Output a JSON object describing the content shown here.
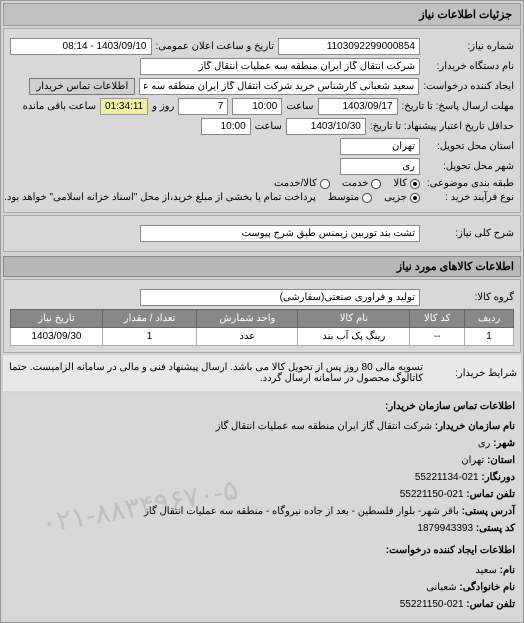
{
  "header": "جزئیات اطلاعات نیاز",
  "fields": {
    "number_label": "شماره نیاز:",
    "number_value": "1103092299000854",
    "announce_label": "تاریخ و ساعت اعلان عمومی:",
    "announce_value": "1403/09/10 - 08:14",
    "buyer_label": "نام دستگاه خریدار:",
    "buyer_value": "شرکت انتقال گاز ایران منطقه سه عملیات انتقال گاز",
    "requester_label": "ایجاد کننده درخواست:",
    "requester_value": "سعید شعبانی کارشناس خرید شرکت انتقال گاز ایران منطقه سه عملیات انتقال",
    "contact_btn": "اطلاعات تماس خریدار",
    "deadline_label": "مهلت ارسال پاسخ: تا تاریخ:",
    "deadline_date": "1403/09/17",
    "saat": "ساعت",
    "deadline_time": "10:00",
    "days_remain": "7",
    "roz_va": "روز و",
    "time_remain": "01:34:11",
    "remain_label": "ساعت باقی مانده",
    "validity_label": "حداقل تاریخ اعتبار پیشنهاد: تا تاریخ:",
    "validity_date": "1403/10/30",
    "validity_time": "10:00",
    "state_label": "استان محل تحویل:",
    "state_value": "تهران",
    "city_label": "شهر محل تحویل:",
    "city_value": "ری",
    "package_label": "طبقه بندی موضوعی:",
    "pkg1": "کالا",
    "pkg2": "خدمت",
    "pkg3": "کالا/خدمت",
    "buy_type_label": "نوع فرآیند خرید :",
    "buy1": "جزیی",
    "buy2": "متوسط",
    "buy_note": "پرداخت تمام یا بخشی از مبلغ خرید،از محل \"اسناد خزانه اسلامی\" خواهد بود.",
    "desc_label": "شرح کلی نیاز:",
    "desc_value": "تشت بند توربین زیمنس طبق شرح پیوست"
  },
  "goods": {
    "title": "اطلاعات کالاهای مورد نیاز",
    "group_label": "گروه کالا:",
    "group_value": "تولید و فرآوری صنعتی(سفارشی)",
    "columns": [
      "ردیف",
      "کد کالا",
      "نام کالا",
      "واحد شمارش",
      "تعداد / مقدار",
      "تاریخ نیاز"
    ],
    "rows": [
      [
        "1",
        "--",
        "رینگ پک آب بند",
        "عدد",
        "1",
        "1403/09/30"
      ]
    ]
  },
  "note": {
    "label": "شرایط خریدار:",
    "text": "تسویه مالی 80 روز پس از تحویل کالا می باشد. ارسال پیشنهاد فنی و مالی در سامانه الزامیست. حتما کاتالوگ محصول در سامانه ارسال گردد."
  },
  "contact": {
    "title": "اطلاعات تماس سازمان خریدار:",
    "org_label": "نام سازمان خریدار:",
    "org": "شرکت انتقال گاز ایران منطقه سه عملیات انتقال گاز",
    "city_label": "شهر:",
    "city": "ری",
    "prov_label": "استان:",
    "prov": "تهران",
    "fax_label": "دورنگار:",
    "fax": "021-55221134",
    "tel_label": "تلفن تماس:",
    "tel": "021-55221150",
    "addr_label": "آدرس پستی:",
    "addr": "باقر شهر- بلوار فلسطین - بعد از جاده نیروگاه - منطقه سه عملیات انتقال گاز",
    "post_label": "کد پستی:",
    "post": "1879943393",
    "req_title": "اطلاعات ایجاد کننده درخواست:",
    "name_label": "نام:",
    "name": "سعید",
    "lname_label": "نام خانوادگی:",
    "lname": "شعبانی",
    "tel2_label": "تلفن تماس:",
    "tel2": "021-55221150"
  },
  "watermark": "۰۲۱-۸۸۳۴۹۶۷۰-۵"
}
